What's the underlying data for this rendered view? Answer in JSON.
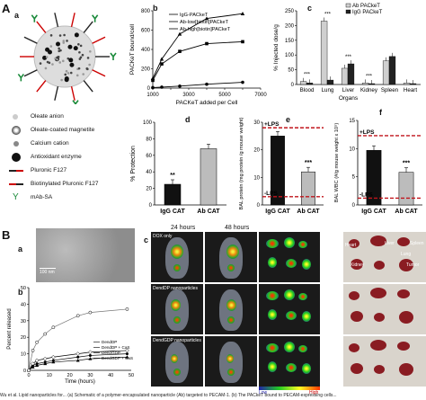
{
  "panel_labels": {
    "A": "A",
    "a": "a",
    "b": "b",
    "c": "c",
    "d": "d",
    "e": "e",
    "f": "f",
    "B": "B",
    "Ba": "a",
    "Bb": "b",
    "Bc": "c"
  },
  "legend_A": [
    {
      "icon": "oleate-anion-icon",
      "text": "Oleate anion"
    },
    {
      "icon": "magnetite-icon",
      "text": "Oleate-coated magnetite"
    },
    {
      "icon": "calcium-icon",
      "text": "Calcium cation"
    },
    {
      "icon": "enzyme-icon",
      "text": "Antioxidant enzyme"
    },
    {
      "icon": "pluronic-icon",
      "text": "Pluronic F127"
    },
    {
      "icon": "biotin-pluronic-icon",
      "text": "Biotinylated Pluronic F127"
    },
    {
      "icon": "mab-sa-icon",
      "text": "mAb-SA"
    }
  ],
  "chart_data": [
    {
      "id": "Ab",
      "type": "line",
      "xlabel": "PACKeT added per Cell",
      "ylabel": "PACKeT bound/cell",
      "xticks": [
        "1000",
        "2000",
        "3000",
        "4000",
        "5000",
        "6000",
        "7000"
      ],
      "yticks": [
        "0",
        "200",
        "400",
        "600",
        "800"
      ],
      "xlim": [
        1000,
        7000
      ],
      "ylim": [
        0,
        800
      ],
      "series": [
        {
          "name": "IgG-PACkeT",
          "marker": "circle",
          "x": [
            1000,
            1500,
            2500,
            4000,
            6000
          ],
          "y": [
            5,
            10,
            20,
            40,
            60
          ]
        },
        {
          "name": "Ab-low[biotin]PACkeT",
          "marker": "square",
          "x": [
            1000,
            1500,
            2500,
            4000,
            6000
          ],
          "y": [
            80,
            250,
            380,
            460,
            480
          ]
        },
        {
          "name": "Ab-high[biotin]PACkeT",
          "marker": "triangle",
          "x": [
            1000,
            1500,
            2500,
            4000,
            6000
          ],
          "y": [
            100,
            300,
            560,
            720,
            770
          ]
        }
      ]
    },
    {
      "id": "Ac",
      "type": "bar",
      "ylabel": "% Injected dose/g",
      "xlabel": "Organs",
      "categories": [
        "Blood",
        "Lung",
        "Liver",
        "Kidney",
        "Spleen",
        "Heart"
      ],
      "yticks": [
        "0",
        "50",
        "100",
        "150",
        "200",
        "250"
      ],
      "ylim": [
        0,
        250
      ],
      "series": [
        {
          "name": "Ab PACkeT",
          "values": [
            10,
            215,
            55,
            5,
            80,
            5
          ]
        },
        {
          "name": "IgG PACkeT",
          "values": [
            5,
            15,
            70,
            3,
            95,
            3
          ]
        }
      ],
      "annotations": [
        "***",
        "***",
        "***",
        "***"
      ]
    },
    {
      "id": "Ad",
      "type": "bar",
      "ylabel": "% Protection",
      "categories": [
        "IgG CAT",
        "Ab CAT"
      ],
      "yticks": [
        "0",
        "20",
        "40",
        "60",
        "80",
        "100"
      ],
      "ylim": [
        0,
        100
      ],
      "values": [
        25,
        68
      ],
      "annotations": [
        "**"
      ]
    },
    {
      "id": "Ae",
      "type": "bar",
      "ylabel": "BAL protein (mg protein /g mouse weight)",
      "categories": [
        "IgG CAT",
        "Ab CAT"
      ],
      "yticks": [
        "0",
        "10",
        "20",
        "30"
      ],
      "ylim": [
        0,
        30
      ],
      "values": [
        25,
        12
      ],
      "reference_lines": [
        "+LPS",
        "-LPS"
      ],
      "annotations": [
        "***"
      ]
    },
    {
      "id": "Af",
      "type": "bar",
      "ylabel": "BAL WBC (#/g mouse weight x 10⁵)",
      "categories": [
        "IgG CAT",
        "Ab CAT"
      ],
      "yticks": [
        "0",
        "5",
        "10",
        "15"
      ],
      "ylim": [
        0,
        15
      ],
      "values": [
        9.7,
        5.8
      ],
      "reference_lines": [
        "+LPS",
        "-LPS"
      ],
      "annotations": [
        "***"
      ]
    },
    {
      "id": "Bb",
      "type": "line",
      "xlabel": "Time (hours)",
      "ylabel": "Percent released",
      "xticks": [
        "0",
        "10",
        "20",
        "30",
        "40",
        "50"
      ],
      "yticks": [
        "0",
        "10",
        "20",
        "30",
        "40",
        "50"
      ],
      "xlim": [
        0,
        50
      ],
      "ylim": [
        0,
        50
      ],
      "series": [
        {
          "name": "DendDP",
          "marker": "circle",
          "x": [
            0,
            2,
            4,
            8,
            12,
            24,
            30,
            48
          ],
          "y": [
            0,
            3,
            4,
            5,
            6,
            8,
            9,
            10
          ]
        },
        {
          "name": "DendDP + CaS",
          "marker": "circle-open",
          "x": [
            0,
            2,
            4,
            8,
            12,
            24,
            30,
            48
          ],
          "y": [
            0,
            12,
            17,
            22,
            26,
            33,
            35,
            37
          ]
        },
        {
          "name": "DendGDP",
          "marker": "triangle",
          "x": [
            0,
            2,
            4,
            8,
            12,
            24,
            30,
            48
          ],
          "y": [
            0,
            2,
            3,
            4,
            5,
            6,
            7,
            8
          ]
        },
        {
          "name": "DendGDP + CaS",
          "marker": "diamond",
          "x": [
            0,
            2,
            4,
            8,
            12,
            24,
            30,
            48
          ],
          "y": [
            0,
            4,
            6,
            7,
            8,
            10,
            11,
            12
          ]
        }
      ]
    }
  ],
  "Bc": {
    "time_labels": [
      "24 hours",
      "48 hours"
    ],
    "row_labels": [
      "DOX only",
      "DendDP nanoparticles",
      "DendGDP nanoparticles"
    ],
    "organ_labels": [
      "Heart",
      "Liver",
      "Spleen",
      "Lung",
      "Kidney",
      "Tumor"
    ],
    "scale_labels": [
      "Low",
      "High"
    ]
  },
  "Ba_scale": "100 nm",
  "caption": "Wu et al. Lipid nanoparticles for... (a) Schematic of a polymer-encapsulated nanoparticle (Ab) targeted to PECAM-1. (b) The PACkeT bound to PECAM-expressing cells..."
}
